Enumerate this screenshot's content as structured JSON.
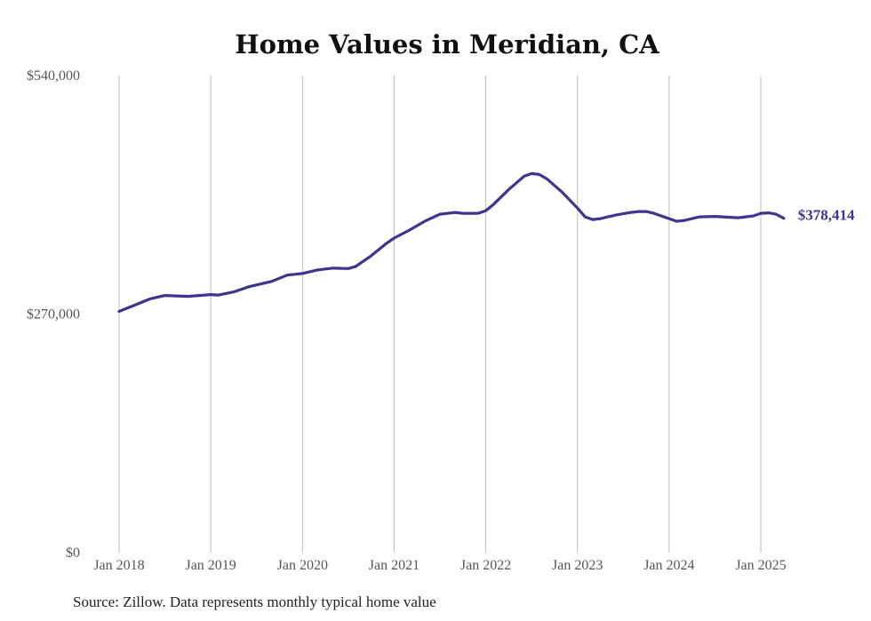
{
  "chart_data": {
    "type": "line",
    "title": "Home Values in Meridian, CA",
    "xlabel": "",
    "ylabel": "",
    "ylim": [
      0,
      540000
    ],
    "yticks": [
      {
        "value": 0,
        "label": "$0"
      },
      {
        "value": 270000,
        "label": "$270,000"
      },
      {
        "value": 540000,
        "label": "$540,000"
      }
    ],
    "xlim": [
      2018.0,
      2025.0
    ],
    "xticks": [
      {
        "value": 2018,
        "label": "Jan 2018"
      },
      {
        "value": 2019,
        "label": "Jan 2019"
      },
      {
        "value": 2020,
        "label": "Jan 2020"
      },
      {
        "value": 2021,
        "label": "Jan 2021"
      },
      {
        "value": 2022,
        "label": "Jan 2022"
      },
      {
        "value": 2023,
        "label": "Jan 2023"
      },
      {
        "value": 2024,
        "label": "Jan 2024"
      },
      {
        "value": 2025,
        "label": "Jan 2025"
      }
    ],
    "grid": "vertical",
    "line_color": "#3d3590",
    "series": [
      {
        "end_label": "$378,414",
        "points": [
          [
            2018.0,
            273000
          ],
          [
            2018.167,
            280000
          ],
          [
            2018.333,
            287000
          ],
          [
            2018.5,
            291000
          ],
          [
            2018.75,
            290000
          ],
          [
            2019.0,
            292000
          ],
          [
            2019.083,
            291500
          ],
          [
            2019.25,
            295000
          ],
          [
            2019.417,
            301000
          ],
          [
            2019.667,
            307000
          ],
          [
            2019.833,
            314000
          ],
          [
            2020.0,
            316000
          ],
          [
            2020.167,
            320000
          ],
          [
            2020.333,
            322000
          ],
          [
            2020.5,
            321500
          ],
          [
            2020.583,
            324000
          ],
          [
            2020.75,
            336000
          ],
          [
            2020.917,
            350000
          ],
          [
            2021.0,
            356000
          ],
          [
            2021.167,
            365000
          ],
          [
            2021.333,
            375000
          ],
          [
            2021.5,
            383000
          ],
          [
            2021.667,
            385000
          ],
          [
            2021.75,
            384000
          ],
          [
            2021.917,
            384000
          ],
          [
            2022.0,
            387000
          ],
          [
            2022.083,
            394000
          ],
          [
            2022.25,
            411000
          ],
          [
            2022.417,
            426000
          ],
          [
            2022.5,
            429000
          ],
          [
            2022.583,
            428000
          ],
          [
            2022.667,
            423000
          ],
          [
            2022.833,
            408000
          ],
          [
            2023.0,
            390000
          ],
          [
            2023.083,
            380000
          ],
          [
            2023.167,
            377000
          ],
          [
            2023.25,
            378000
          ],
          [
            2023.417,
            382000
          ],
          [
            2023.583,
            385000
          ],
          [
            2023.667,
            386000
          ],
          [
            2023.75,
            386000
          ],
          [
            2023.833,
            384000
          ],
          [
            2024.0,
            378000
          ],
          [
            2024.083,
            375000
          ],
          [
            2024.167,
            376000
          ],
          [
            2024.333,
            380000
          ],
          [
            2024.5,
            380500
          ],
          [
            2024.75,
            379000
          ],
          [
            2024.917,
            381000
          ],
          [
            2025.0,
            384000
          ],
          [
            2025.083,
            384500
          ],
          [
            2025.167,
            383000
          ],
          [
            2025.25,
            378414
          ]
        ]
      }
    ],
    "source_note": "Source: Zillow. Data represents monthly typical home value"
  }
}
